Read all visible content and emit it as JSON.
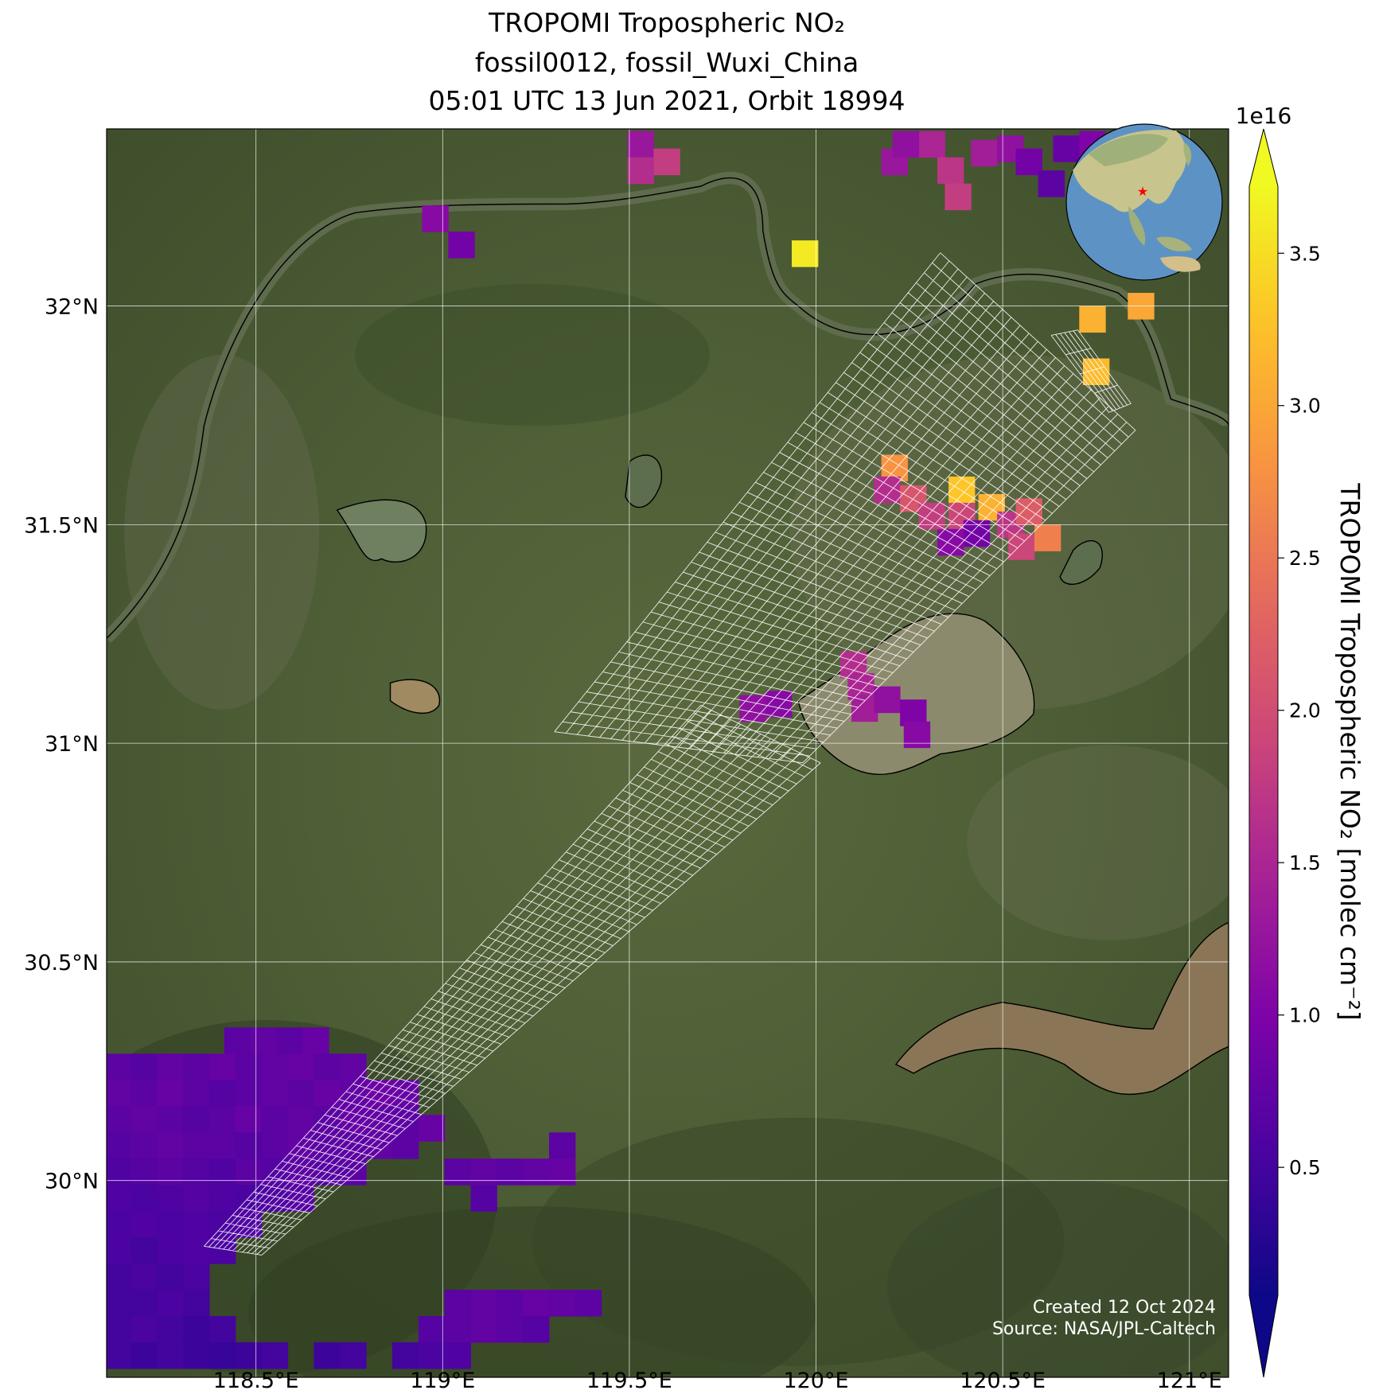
{
  "chart_data": {
    "type": "map",
    "title": [
      "TROPOMI Tropospheric NO₂",
      "fossil0012, fossil_Wuxi_China",
      "05:01 UTC 13 Jun 2021, Orbit 18994"
    ],
    "xlim": [
      118.1,
      121.105
    ],
    "ylim": [
      29.55,
      32.405
    ],
    "xticks": [
      {
        "value": 118.5,
        "label": "118.5°E"
      },
      {
        "value": 119,
        "label": "119°E"
      },
      {
        "value": 119.5,
        "label": "119.5°E"
      },
      {
        "value": 120,
        "label": "120°E"
      },
      {
        "value": 120.5,
        "label": "120.5°E"
      },
      {
        "value": 121,
        "label": "121°E"
      }
    ],
    "yticks": [
      {
        "value": 30,
        "label": "30°N"
      },
      {
        "value": 30.5,
        "label": "30.5°N"
      },
      {
        "value": 31,
        "label": "31°N"
      },
      {
        "value": 31.5,
        "label": "31.5°N"
      },
      {
        "value": 32,
        "label": "32°N"
      }
    ],
    "grid": true,
    "colormap": "plasma",
    "colorbar_label": "TROPOMI Tropospheric NO₂ [molec cm⁻²]",
    "colorbar_exponent": "1e16",
    "clim": [
      0.08,
      3.72
    ],
    "cticks": [
      0.5,
      {
        "value": 1,
        "label": "1.0"
      },
      1.5,
      {
        "value": 2,
        "label": "2.0"
      },
      2.5,
      {
        "value": 3,
        "label": "3.0"
      },
      3.5
    ],
    "target": {
      "lon": 120.29,
      "lat": 31.57,
      "color": "#ff0000"
    },
    "credits": [
      "Created 12 Oct 2024",
      "Source: NASA/JPL-Caltech"
    ],
    "pixels": [
      {
        "lon": 119.53,
        "lat": 32.37,
        "value": 1.3
      },
      {
        "lon": 119.6,
        "lat": 32.33,
        "value": 1.8
      },
      {
        "lon": 119.53,
        "lat": 32.31,
        "value": 1.6
      },
      {
        "lon": 118.98,
        "lat": 32.2,
        "value": 1.1
      },
      {
        "lon": 119.05,
        "lat": 32.14,
        "value": 0.9
      },
      {
        "lon": 119.97,
        "lat": 32.12,
        "value": 3.6
      },
      {
        "lon": 120.21,
        "lat": 32.33,
        "value": 1.3
      },
      {
        "lon": 120.31,
        "lat": 32.37,
        "value": 1.5
      },
      {
        "lon": 120.36,
        "lat": 32.31,
        "value": 1.7
      },
      {
        "lon": 120.38,
        "lat": 32.25,
        "value": 1.8
      },
      {
        "lon": 120.45,
        "lat": 32.35,
        "value": 1.4
      },
      {
        "lon": 120.52,
        "lat": 32.36,
        "value": 1.2
      },
      {
        "lon": 120.57,
        "lat": 32.33,
        "value": 0.9
      },
      {
        "lon": 120.63,
        "lat": 32.28,
        "value": 0.7
      },
      {
        "lon": 120.67,
        "lat": 32.36,
        "value": 0.8
      },
      {
        "lon": 120.74,
        "lat": 32.37,
        "value": 1.0
      },
      {
        "lon": 120.24,
        "lat": 32.37,
        "value": 1.2
      },
      {
        "lon": 120.74,
        "lat": 31.97,
        "value": 3.1
      },
      {
        "lon": 120.87,
        "lat": 32.0,
        "value": 3.0
      },
      {
        "lon": 120.75,
        "lat": 31.85,
        "value": 3.2
      },
      {
        "lon": 120.21,
        "lat": 31.63,
        "value": 2.8
      },
      {
        "lon": 120.19,
        "lat": 31.58,
        "value": 1.6
      },
      {
        "lon": 120.26,
        "lat": 31.56,
        "value": 2.1
      },
      {
        "lon": 120.39,
        "lat": 31.58,
        "value": 3.3
      },
      {
        "lon": 120.47,
        "lat": 31.54,
        "value": 3.1
      },
      {
        "lon": 120.39,
        "lat": 31.52,
        "value": 1.9
      },
      {
        "lon": 120.43,
        "lat": 31.48,
        "value": 0.9
      },
      {
        "lon": 120.36,
        "lat": 31.46,
        "value": 1.1
      },
      {
        "lon": 120.52,
        "lat": 31.5,
        "value": 1.7
      },
      {
        "lon": 120.55,
        "lat": 31.45,
        "value": 1.9
      },
      {
        "lon": 120.62,
        "lat": 31.47,
        "value": 2.6
      },
      {
        "lon": 120.57,
        "lat": 31.53,
        "value": 2.2
      },
      {
        "lon": 120.31,
        "lat": 31.52,
        "value": 1.8
      },
      {
        "lon": 120.1,
        "lat": 31.18,
        "value": 1.6
      },
      {
        "lon": 120.12,
        "lat": 31.13,
        "value": 1.5
      },
      {
        "lon": 120.13,
        "lat": 31.08,
        "value": 1.4
      },
      {
        "lon": 120.19,
        "lat": 31.1,
        "value": 1.2
      },
      {
        "lon": 120.26,
        "lat": 31.07,
        "value": 1.0
      },
      {
        "lon": 120.27,
        "lat": 31.02,
        "value": 1.1
      },
      {
        "lon": 119.83,
        "lat": 31.08,
        "value": 1.2
      },
      {
        "lon": 119.9,
        "lat": 31.09,
        "value": 1.1
      },
      {
        "lon": 118.45,
        "lat": 30.32,
        "value": 0.7
      },
      {
        "lon": 118.52,
        "lat": 30.32,
        "value": 0.75
      },
      {
        "lon": 118.59,
        "lat": 30.32,
        "value": 0.7
      },
      {
        "lon": 118.66,
        "lat": 30.32,
        "value": 0.8
      },
      {
        "lon": 118.13,
        "lat": 30.26,
        "value": 0.7
      },
      {
        "lon": 118.2,
        "lat": 30.26,
        "value": 0.65
      },
      {
        "lon": 118.27,
        "lat": 30.26,
        "value": 0.75
      },
      {
        "lon": 118.34,
        "lat": 30.26,
        "value": 0.7
      },
      {
        "lon": 118.41,
        "lat": 30.26,
        "value": 0.8
      },
      {
        "lon": 118.48,
        "lat": 30.26,
        "value": 0.7
      },
      {
        "lon": 118.55,
        "lat": 30.26,
        "value": 0.75
      },
      {
        "lon": 118.62,
        "lat": 30.26,
        "value": 0.8
      },
      {
        "lon": 118.69,
        "lat": 30.26,
        "value": 0.7
      },
      {
        "lon": 118.76,
        "lat": 30.26,
        "value": 0.75
      },
      {
        "lon": 118.13,
        "lat": 30.2,
        "value": 0.75
      },
      {
        "lon": 118.2,
        "lat": 30.2,
        "value": 0.7
      },
      {
        "lon": 118.27,
        "lat": 30.2,
        "value": 0.8
      },
      {
        "lon": 118.34,
        "lat": 30.2,
        "value": 0.7
      },
      {
        "lon": 118.41,
        "lat": 30.2,
        "value": 0.65
      },
      {
        "lon": 118.48,
        "lat": 30.2,
        "value": 0.7
      },
      {
        "lon": 118.55,
        "lat": 30.2,
        "value": 0.75
      },
      {
        "lon": 118.62,
        "lat": 30.2,
        "value": 0.7
      },
      {
        "lon": 118.69,
        "lat": 30.2,
        "value": 0.8
      },
      {
        "lon": 118.76,
        "lat": 30.2,
        "value": 0.75
      },
      {
        "lon": 118.83,
        "lat": 30.2,
        "value": 0.85
      },
      {
        "lon": 118.9,
        "lat": 30.2,
        "value": 0.8
      },
      {
        "lon": 118.13,
        "lat": 30.14,
        "value": 0.7
      },
      {
        "lon": 118.2,
        "lat": 30.14,
        "value": 0.75
      },
      {
        "lon": 118.27,
        "lat": 30.14,
        "value": 0.7
      },
      {
        "lon": 118.34,
        "lat": 30.14,
        "value": 0.65
      },
      {
        "lon": 118.41,
        "lat": 30.14,
        "value": 0.7
      },
      {
        "lon": 118.48,
        "lat": 30.14,
        "value": 0.8
      },
      {
        "lon": 118.55,
        "lat": 30.14,
        "value": 0.7
      },
      {
        "lon": 118.62,
        "lat": 30.14,
        "value": 0.75
      },
      {
        "lon": 118.69,
        "lat": 30.14,
        "value": 0.7
      },
      {
        "lon": 118.76,
        "lat": 30.14,
        "value": 0.8
      },
      {
        "lon": 118.83,
        "lat": 30.14,
        "value": 0.75
      },
      {
        "lon": 118.9,
        "lat": 30.14,
        "value": 0.7
      },
      {
        "lon": 118.13,
        "lat": 30.08,
        "value": 0.65
      },
      {
        "lon": 118.2,
        "lat": 30.08,
        "value": 0.7
      },
      {
        "lon": 118.27,
        "lat": 30.08,
        "value": 0.75
      },
      {
        "lon": 118.34,
        "lat": 30.08,
        "value": 0.7
      },
      {
        "lon": 118.41,
        "lat": 30.08,
        "value": 0.7
      },
      {
        "lon": 118.48,
        "lat": 30.08,
        "value": 0.65
      },
      {
        "lon": 118.55,
        "lat": 30.08,
        "value": 0.7
      },
      {
        "lon": 118.62,
        "lat": 30.08,
        "value": 0.75
      },
      {
        "lon": 118.69,
        "lat": 30.08,
        "value": 0.7
      },
      {
        "lon": 118.76,
        "lat": 30.08,
        "value": 0.7
      },
      {
        "lon": 118.83,
        "lat": 30.08,
        "value": 0.75
      },
      {
        "lon": 118.9,
        "lat": 30.08,
        "value": 0.7
      },
      {
        "lon": 118.13,
        "lat": 30.02,
        "value": 0.6
      },
      {
        "lon": 118.2,
        "lat": 30.02,
        "value": 0.65
      },
      {
        "lon": 118.27,
        "lat": 30.02,
        "value": 0.7
      },
      {
        "lon": 118.34,
        "lat": 30.02,
        "value": 0.65
      },
      {
        "lon": 118.41,
        "lat": 30.02,
        "value": 0.6
      },
      {
        "lon": 118.48,
        "lat": 30.02,
        "value": 0.7
      },
      {
        "lon": 118.55,
        "lat": 30.02,
        "value": 0.65
      },
      {
        "lon": 118.62,
        "lat": 30.02,
        "value": 0.7
      },
      {
        "lon": 118.69,
        "lat": 30.02,
        "value": 0.65
      },
      {
        "lon": 118.76,
        "lat": 30.02,
        "value": 0.7
      },
      {
        "lon": 118.13,
        "lat": 29.96,
        "value": 0.6
      },
      {
        "lon": 118.2,
        "lat": 29.96,
        "value": 0.55
      },
      {
        "lon": 118.27,
        "lat": 29.96,
        "value": 0.6
      },
      {
        "lon": 118.34,
        "lat": 29.96,
        "value": 0.65
      },
      {
        "lon": 118.41,
        "lat": 29.96,
        "value": 0.6
      },
      {
        "lon": 118.48,
        "lat": 29.96,
        "value": 0.55
      },
      {
        "lon": 118.55,
        "lat": 29.96,
        "value": 0.6
      },
      {
        "lon": 118.62,
        "lat": 29.96,
        "value": 0.65
      },
      {
        "lon": 118.13,
        "lat": 29.9,
        "value": 0.55
      },
      {
        "lon": 118.2,
        "lat": 29.9,
        "value": 0.6
      },
      {
        "lon": 118.27,
        "lat": 29.9,
        "value": 0.55
      },
      {
        "lon": 118.34,
        "lat": 29.9,
        "value": 0.6
      },
      {
        "lon": 118.41,
        "lat": 29.9,
        "value": 0.55
      },
      {
        "lon": 118.48,
        "lat": 29.9,
        "value": 0.6
      },
      {
        "lon": 118.13,
        "lat": 29.84,
        "value": 0.55
      },
      {
        "lon": 118.2,
        "lat": 29.84,
        "value": 0.5
      },
      {
        "lon": 118.27,
        "lat": 29.84,
        "value": 0.55
      },
      {
        "lon": 118.34,
        "lat": 29.84,
        "value": 0.6
      },
      {
        "lon": 118.41,
        "lat": 29.84,
        "value": 0.55
      },
      {
        "lon": 118.13,
        "lat": 29.78,
        "value": 0.5
      },
      {
        "lon": 118.2,
        "lat": 29.78,
        "value": 0.55
      },
      {
        "lon": 118.27,
        "lat": 29.78,
        "value": 0.5
      },
      {
        "lon": 118.34,
        "lat": 29.78,
        "value": 0.55
      },
      {
        "lon": 118.13,
        "lat": 29.72,
        "value": 0.5
      },
      {
        "lon": 118.2,
        "lat": 29.72,
        "value": 0.5
      },
      {
        "lon": 118.27,
        "lat": 29.72,
        "value": 0.55
      },
      {
        "lon": 118.34,
        "lat": 29.72,
        "value": 0.5
      },
      {
        "lon": 118.13,
        "lat": 29.66,
        "value": 0.5
      },
      {
        "lon": 118.2,
        "lat": 29.66,
        "value": 0.55
      },
      {
        "lon": 118.27,
        "lat": 29.66,
        "value": 0.5
      },
      {
        "lon": 118.34,
        "lat": 29.66,
        "value": 0.45
      },
      {
        "lon": 118.41,
        "lat": 29.66,
        "value": 0.5
      },
      {
        "lon": 118.13,
        "lat": 29.6,
        "value": 0.5
      },
      {
        "lon": 118.2,
        "lat": 29.6,
        "value": 0.45
      },
      {
        "lon": 118.27,
        "lat": 29.6,
        "value": 0.5
      },
      {
        "lon": 118.34,
        "lat": 29.6,
        "value": 0.45
      },
      {
        "lon": 118.41,
        "lat": 29.6,
        "value": 0.4
      },
      {
        "lon": 118.48,
        "lat": 29.6,
        "value": 0.45
      },
      {
        "lon": 118.55,
        "lat": 29.6,
        "value": 0.5
      },
      {
        "lon": 118.97,
        "lat": 30.12,
        "value": 0.8
      },
      {
        "lon": 119.04,
        "lat": 30.02,
        "value": 0.7
      },
      {
        "lon": 119.11,
        "lat": 30.02,
        "value": 0.75
      },
      {
        "lon": 119.18,
        "lat": 30.02,
        "value": 0.7
      },
      {
        "lon": 119.11,
        "lat": 29.96,
        "value": 0.65
      },
      {
        "lon": 119.25,
        "lat": 30.02,
        "value": 0.75
      },
      {
        "lon": 119.32,
        "lat": 30.02,
        "value": 0.8
      },
      {
        "lon": 119.32,
        "lat": 30.08,
        "value": 0.7
      },
      {
        "lon": 119.04,
        "lat": 29.72,
        "value": 0.7
      },
      {
        "lon": 119.11,
        "lat": 29.72,
        "value": 0.75
      },
      {
        "lon": 119.18,
        "lat": 29.72,
        "value": 0.7
      },
      {
        "lon": 119.25,
        "lat": 29.72,
        "value": 0.8
      },
      {
        "lon": 119.32,
        "lat": 29.72,
        "value": 0.75
      },
      {
        "lon": 119.39,
        "lat": 29.72,
        "value": 0.7
      },
      {
        "lon": 118.97,
        "lat": 29.66,
        "value": 0.65
      },
      {
        "lon": 119.04,
        "lat": 29.66,
        "value": 0.7
      },
      {
        "lon": 119.11,
        "lat": 29.66,
        "value": 0.75
      },
      {
        "lon": 119.18,
        "lat": 29.66,
        "value": 0.7
      },
      {
        "lon": 119.25,
        "lat": 29.66,
        "value": 0.65
      },
      {
        "lon": 118.9,
        "lat": 29.6,
        "value": 0.5
      },
      {
        "lon": 118.97,
        "lat": 29.6,
        "value": 0.55
      },
      {
        "lon": 119.04,
        "lat": 29.6,
        "value": 0.6
      },
      {
        "lon": 118.69,
        "lat": 29.6,
        "value": 0.45
      },
      {
        "lon": 118.76,
        "lat": 29.6,
        "value": 0.5
      }
    ]
  }
}
